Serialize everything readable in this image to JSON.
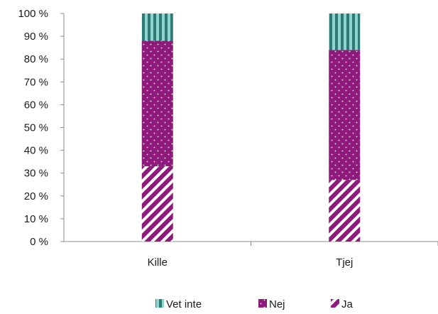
{
  "chart_data": {
    "type": "bar",
    "stacked": true,
    "categories": [
      "Kille",
      "Tjej"
    ],
    "series": [
      {
        "name": "Ja",
        "values": [
          33,
          27
        ],
        "color": "#8e1a7c",
        "pattern": "diagonal-stripes"
      },
      {
        "name": "Nej",
        "values": [
          55,
          57
        ],
        "color": "#8e1a7c",
        "pattern": "dots"
      },
      {
        "name": "Vet inte",
        "values": [
          12,
          16
        ],
        "color": "#2e7b75",
        "pattern": "vertical-stripes"
      }
    ],
    "y_tick_labels": [
      "0 %",
      "10 %",
      "20 %",
      "30 %",
      "40 %",
      "50 %",
      "60 %",
      "70 %",
      "80 %",
      "90 %",
      "100 %"
    ],
    "ylim": [
      0,
      100
    ],
    "grid": false,
    "legend_position": "bottom",
    "legend_order": [
      "Vet inte",
      "Nej",
      "Ja"
    ]
  }
}
